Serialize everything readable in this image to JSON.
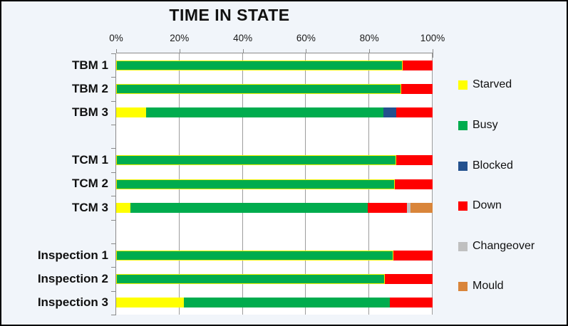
{
  "title": "TIME IN STATE",
  "x_axis": {
    "tick_labels": [
      "0%",
      "20%",
      "40%",
      "60%",
      "80%",
      "100%"
    ]
  },
  "legend": {
    "position": "right",
    "items": [
      {
        "label": "Starved",
        "color": "#ffff00"
      },
      {
        "label": "Busy",
        "color": "#00ac4e"
      },
      {
        "label": "Blocked",
        "color": "#24518e"
      },
      {
        "label": "Down",
        "color": "#ff0000"
      },
      {
        "label": "Changeover",
        "color": "#c0c0c0"
      },
      {
        "label": "Mould",
        "color": "#d9853a"
      }
    ]
  },
  "chart_data": {
    "type": "bar",
    "orientation": "horizontal",
    "stacked": true,
    "title": "TIME IN STATE",
    "xlabel": "",
    "ylabel": "",
    "xlim": [
      0,
      100
    ],
    "grid": true,
    "legend_position": "right",
    "categories": [
      "TBM 1",
      "TBM 2",
      "TBM 3",
      "TCM 1",
      "TCM 2",
      "TCM 3",
      "Inspection 1",
      "Inspection 2",
      "Inspection 3"
    ],
    "groups": [
      [
        "TBM 1",
        "TBM 2",
        "TBM 3"
      ],
      [
        "TCM 1",
        "TCM 2",
        "TCM 3"
      ],
      [
        "Inspection 1",
        "Inspection 2",
        "Inspection 3"
      ]
    ],
    "series": [
      {
        "name": "Starved",
        "color": "#ffff00",
        "values": [
          0,
          0,
          9.5,
          0,
          0,
          4.5,
          0,
          0,
          21.5
        ]
      },
      {
        "name": "Busy",
        "color": "#00ac4e",
        "values": [
          90.5,
          90,
          75,
          88.5,
          88,
          75,
          87.5,
          85,
          65
        ]
      },
      {
        "name": "Blocked",
        "color": "#24518e",
        "values": [
          0,
          0,
          4,
          0,
          0,
          0,
          0,
          0,
          0
        ]
      },
      {
        "name": "Down",
        "color": "#ff0000",
        "values": [
          9.5,
          10,
          11.5,
          11.5,
          12,
          12.5,
          12.5,
          15,
          13.5
        ]
      },
      {
        "name": "Changeover",
        "color": "#c0c0c0",
        "values": [
          0,
          0,
          0,
          0,
          0,
          1,
          0,
          0,
          0
        ]
      },
      {
        "name": "Mould",
        "color": "#d9853a",
        "values": [
          0,
          0,
          0,
          0,
          0,
          7,
          0,
          0,
          0
        ]
      }
    ]
  }
}
